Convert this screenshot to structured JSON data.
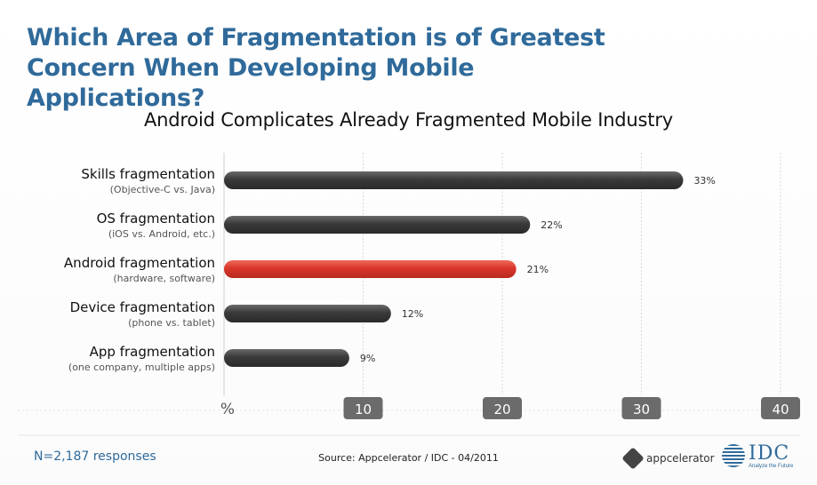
{
  "header": {
    "title_line1": "Which Area of Fragmentation is of Greatest",
    "title_line2": "Concern When Developing Mobile Applications?"
  },
  "footer": {
    "responses": "N=2,187 responses",
    "source": "Source: Appcelerator / IDC - 04/2011",
    "logo_appcelerator": "appcelerator",
    "logo_idc": "IDC",
    "logo_idc_tagline": "Analyze the Future"
  },
  "colors": {
    "bar": "#3f3f3f",
    "highlight": "#d9362a",
    "title": "#2f6a9a",
    "tick_box": "#6b6b6b"
  },
  "chart_data": {
    "type": "bar",
    "orientation": "horizontal",
    "title": "Android Complicates Already Fragmented Mobile Industry",
    "xlabel": "%",
    "xlim": [
      0,
      40
    ],
    "xticks": [
      10,
      20,
      30,
      40
    ],
    "grid": true,
    "categories": [
      {
        "label": "Skills fragmentation",
        "sublabel": "(Objective-C vs. Java)",
        "value": 33,
        "value_label": "33%",
        "highlight": false
      },
      {
        "label": "OS fragmentation",
        "sublabel": "(iOS vs. Android, etc.)",
        "value": 22,
        "value_label": "22%",
        "highlight": false
      },
      {
        "label": "Android fragmentation",
        "sublabel": "(hardware, software)",
        "value": 21,
        "value_label": "21%",
        "highlight": true
      },
      {
        "label": "Device fragmentation",
        "sublabel": "(phone vs. tablet)",
        "value": 12,
        "value_label": "12%",
        "highlight": false
      },
      {
        "label": "App fragmentation",
        "sublabel": "(one company, multiple apps)",
        "value": 9,
        "value_label": "9%",
        "highlight": false
      }
    ]
  }
}
